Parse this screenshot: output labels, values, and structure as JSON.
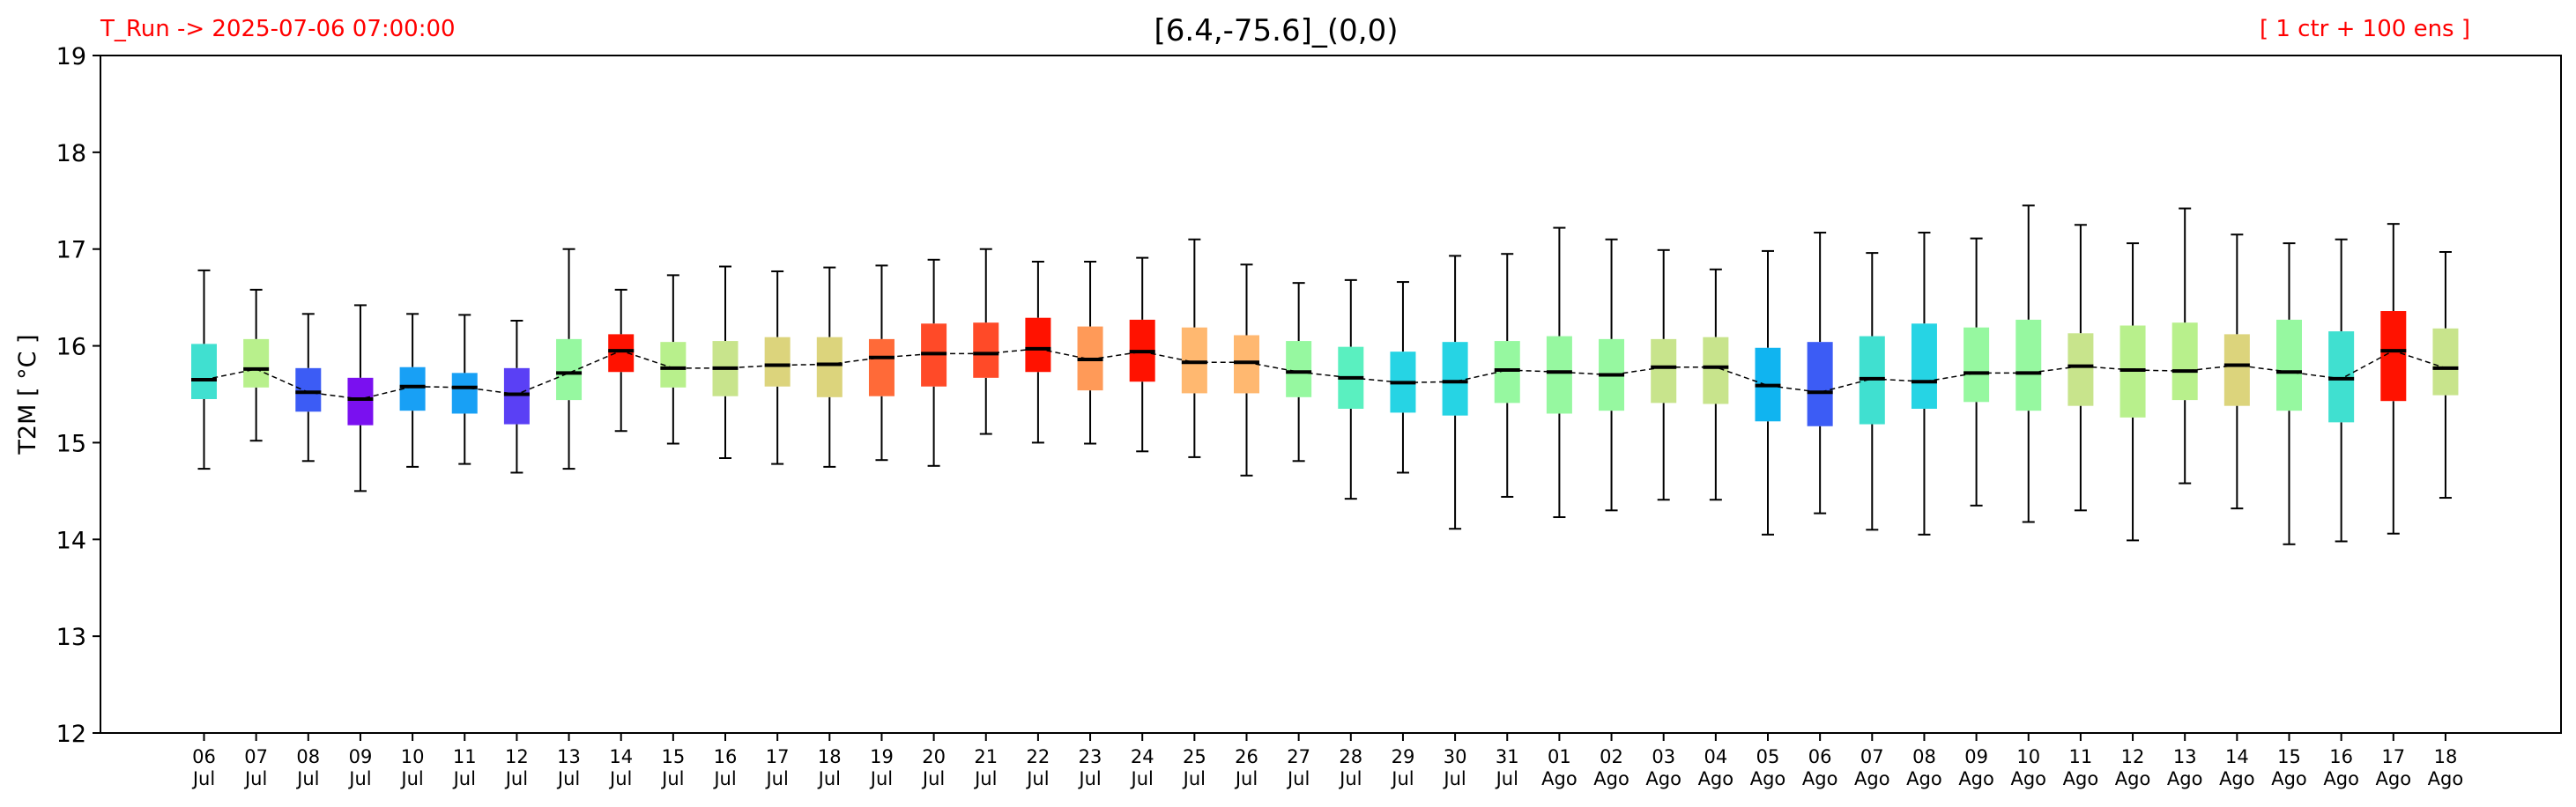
{
  "chart_data": {
    "type": "boxplot",
    "title": "[6.4,-75.6]_(0,0)",
    "run_label": "T_Run -> 2025-07-06  07:00:00",
    "ensemble_label": "[ 1 ctr + 100 ens ]",
    "ylabel": "T2M  [ °C ]",
    "ylim": [
      12,
      19
    ],
    "yticks": [
      12,
      13,
      14,
      15,
      16,
      17,
      18,
      19
    ],
    "grid": false,
    "categories": [
      {
        "day": "06",
        "month": "Jul"
      },
      {
        "day": "07",
        "month": "Jul"
      },
      {
        "day": "08",
        "month": "Jul"
      },
      {
        "day": "09",
        "month": "Jul"
      },
      {
        "day": "10",
        "month": "Jul"
      },
      {
        "day": "11",
        "month": "Jul"
      },
      {
        "day": "12",
        "month": "Jul"
      },
      {
        "day": "13",
        "month": "Jul"
      },
      {
        "day": "14",
        "month": "Jul"
      },
      {
        "day": "15",
        "month": "Jul"
      },
      {
        "day": "16",
        "month": "Jul"
      },
      {
        "day": "17",
        "month": "Jul"
      },
      {
        "day": "18",
        "month": "Jul"
      },
      {
        "day": "19",
        "month": "Jul"
      },
      {
        "day": "20",
        "month": "Jul"
      },
      {
        "day": "21",
        "month": "Jul"
      },
      {
        "day": "22",
        "month": "Jul"
      },
      {
        "day": "23",
        "month": "Jul"
      },
      {
        "day": "24",
        "month": "Jul"
      },
      {
        "day": "25",
        "month": "Jul"
      },
      {
        "day": "26",
        "month": "Jul"
      },
      {
        "day": "27",
        "month": "Jul"
      },
      {
        "day": "28",
        "month": "Jul"
      },
      {
        "day": "29",
        "month": "Jul"
      },
      {
        "day": "30",
        "month": "Jul"
      },
      {
        "day": "31",
        "month": "Jul"
      },
      {
        "day": "01",
        "month": "Ago"
      },
      {
        "day": "02",
        "month": "Ago"
      },
      {
        "day": "03",
        "month": "Ago"
      },
      {
        "day": "04",
        "month": "Ago"
      },
      {
        "day": "05",
        "month": "Ago"
      },
      {
        "day": "06",
        "month": "Ago"
      },
      {
        "day": "07",
        "month": "Ago"
      },
      {
        "day": "08",
        "month": "Ago"
      },
      {
        "day": "09",
        "month": "Ago"
      },
      {
        "day": "10",
        "month": "Ago"
      },
      {
        "day": "11",
        "month": "Ago"
      },
      {
        "day": "12",
        "month": "Ago"
      },
      {
        "day": "13",
        "month": "Ago"
      },
      {
        "day": "14",
        "month": "Ago"
      },
      {
        "day": "15",
        "month": "Ago"
      },
      {
        "day": "16",
        "month": "Ago"
      },
      {
        "day": "17",
        "month": "Ago"
      },
      {
        "day": "18",
        "month": "Ago"
      }
    ],
    "boxes": [
      {
        "min": 14.73,
        "q1": 15.45,
        "median": 15.65,
        "q3": 16.02,
        "max": 16.78,
        "color": "#40e0d0"
      },
      {
        "min": 15.02,
        "q1": 15.57,
        "median": 15.76,
        "q3": 16.07,
        "max": 16.58,
        "color": "#b8f08c"
      },
      {
        "min": 14.81,
        "q1": 15.32,
        "median": 15.52,
        "q3": 15.77,
        "max": 16.33,
        "color": "#3c5cf5"
      },
      {
        "min": 14.5,
        "q1": 15.18,
        "median": 15.45,
        "q3": 15.67,
        "max": 16.42,
        "color": "#7a10f0"
      },
      {
        "min": 14.75,
        "q1": 15.33,
        "median": 15.58,
        "q3": 15.78,
        "max": 16.33,
        "color": "#18a0f5"
      },
      {
        "min": 14.78,
        "q1": 15.3,
        "median": 15.57,
        "q3": 15.72,
        "max": 16.32,
        "color": "#18a0f5"
      },
      {
        "min": 14.69,
        "q1": 15.19,
        "median": 15.5,
        "q3": 15.77,
        "max": 16.26,
        "color": "#5a40f5"
      },
      {
        "min": 14.73,
        "q1": 15.44,
        "median": 15.72,
        "q3": 16.07,
        "max": 17.0,
        "color": "#96f8a0"
      },
      {
        "min": 15.12,
        "q1": 15.73,
        "median": 15.95,
        "q3": 16.12,
        "max": 16.58,
        "color": "#ff1200"
      },
      {
        "min": 14.99,
        "q1": 15.57,
        "median": 15.77,
        "q3": 16.04,
        "max": 16.73,
        "color": "#b8f08c"
      },
      {
        "min": 14.84,
        "q1": 15.48,
        "median": 15.77,
        "q3": 16.05,
        "max": 16.82,
        "color": "#c8e48c"
      },
      {
        "min": 14.78,
        "q1": 15.58,
        "median": 15.8,
        "q3": 16.09,
        "max": 16.77,
        "color": "#dcd47c"
      },
      {
        "min": 14.75,
        "q1": 15.47,
        "median": 15.81,
        "q3": 16.09,
        "max": 16.81,
        "color": "#dcd47c"
      },
      {
        "min": 14.82,
        "q1": 15.48,
        "median": 15.88,
        "q3": 16.07,
        "max": 16.83,
        "color": "#ff6a38"
      },
      {
        "min": 14.76,
        "q1": 15.58,
        "median": 15.92,
        "q3": 16.23,
        "max": 16.89,
        "color": "#ff4a28"
      },
      {
        "min": 15.09,
        "q1": 15.67,
        "median": 15.92,
        "q3": 16.24,
        "max": 17.0,
        "color": "#ff4a28"
      },
      {
        "min": 15.0,
        "q1": 15.73,
        "median": 15.97,
        "q3": 16.29,
        "max": 16.87,
        "color": "#ff1200"
      },
      {
        "min": 14.99,
        "q1": 15.54,
        "median": 15.86,
        "q3": 16.2,
        "max": 16.87,
        "color": "#ff9a58"
      },
      {
        "min": 14.91,
        "q1": 15.63,
        "median": 15.94,
        "q3": 16.27,
        "max": 16.91,
        "color": "#ff1200"
      },
      {
        "min": 14.85,
        "q1": 15.51,
        "median": 15.83,
        "q3": 16.19,
        "max": 17.1,
        "color": "#ffb870"
      },
      {
        "min": 14.66,
        "q1": 15.51,
        "median": 15.83,
        "q3": 16.11,
        "max": 16.84,
        "color": "#ffb870"
      },
      {
        "min": 14.81,
        "q1": 15.47,
        "median": 15.73,
        "q3": 16.05,
        "max": 16.65,
        "color": "#96f8a0"
      },
      {
        "min": 14.42,
        "q1": 15.35,
        "median": 15.67,
        "q3": 15.99,
        "max": 16.68,
        "color": "#5af0c0"
      },
      {
        "min": 14.69,
        "q1": 15.31,
        "median": 15.62,
        "q3": 15.94,
        "max": 16.66,
        "color": "#26d4e4"
      },
      {
        "min": 14.11,
        "q1": 15.28,
        "median": 15.63,
        "q3": 16.04,
        "max": 16.93,
        "color": "#26d4e4"
      },
      {
        "min": 14.44,
        "q1": 15.41,
        "median": 15.75,
        "q3": 16.05,
        "max": 16.95,
        "color": "#96f8a0"
      },
      {
        "min": 14.23,
        "q1": 15.3,
        "median": 15.73,
        "q3": 16.1,
        "max": 17.22,
        "color": "#96f8a0"
      },
      {
        "min": 14.3,
        "q1": 15.33,
        "median": 15.7,
        "q3": 16.07,
        "max": 17.1,
        "color": "#96f8a0"
      },
      {
        "min": 14.41,
        "q1": 15.41,
        "median": 15.78,
        "q3": 16.07,
        "max": 16.99,
        "color": "#c8e48c"
      },
      {
        "min": 14.41,
        "q1": 15.4,
        "median": 15.78,
        "q3": 16.09,
        "max": 16.79,
        "color": "#c8e48c"
      },
      {
        "min": 14.05,
        "q1": 15.22,
        "median": 15.59,
        "q3": 15.98,
        "max": 16.98,
        "color": "#10b4f0"
      },
      {
        "min": 14.27,
        "q1": 15.17,
        "median": 15.52,
        "q3": 16.04,
        "max": 17.17,
        "color": "#3c5cf5"
      },
      {
        "min": 14.1,
        "q1": 15.19,
        "median": 15.66,
        "q3": 16.1,
        "max": 16.96,
        "color": "#40e0d0"
      },
      {
        "min": 14.05,
        "q1": 15.35,
        "median": 15.63,
        "q3": 16.23,
        "max": 17.17,
        "color": "#26d4e4"
      },
      {
        "min": 14.35,
        "q1": 15.42,
        "median": 15.72,
        "q3": 16.19,
        "max": 17.11,
        "color": "#96f8a0"
      },
      {
        "min": 14.18,
        "q1": 15.33,
        "median": 15.72,
        "q3": 16.27,
        "max": 17.45,
        "color": "#96f8a0"
      },
      {
        "min": 14.3,
        "q1": 15.38,
        "median": 15.79,
        "q3": 16.13,
        "max": 17.25,
        "color": "#c8e48c"
      },
      {
        "min": 13.99,
        "q1": 15.26,
        "median": 15.75,
        "q3": 16.21,
        "max": 17.06,
        "color": "#b8f08c"
      },
      {
        "min": 14.58,
        "q1": 15.44,
        "median": 15.74,
        "q3": 16.24,
        "max": 17.42,
        "color": "#b8f08c"
      },
      {
        "min": 14.32,
        "q1": 15.38,
        "median": 15.8,
        "q3": 16.12,
        "max": 17.15,
        "color": "#dcd47c"
      },
      {
        "min": 13.95,
        "q1": 15.33,
        "median": 15.73,
        "q3": 16.27,
        "max": 17.06,
        "color": "#96f8a0"
      },
      {
        "min": 13.98,
        "q1": 15.21,
        "median": 15.66,
        "q3": 16.15,
        "max": 17.1,
        "color": "#40e0d0"
      },
      {
        "min": 14.06,
        "q1": 15.43,
        "median": 15.95,
        "q3": 16.36,
        "max": 17.26,
        "color": "#ff1200"
      },
      {
        "min": 14.43,
        "q1": 15.49,
        "median": 15.77,
        "q3": 16.18,
        "max": 16.97,
        "color": "#c8e48c"
      }
    ]
  }
}
